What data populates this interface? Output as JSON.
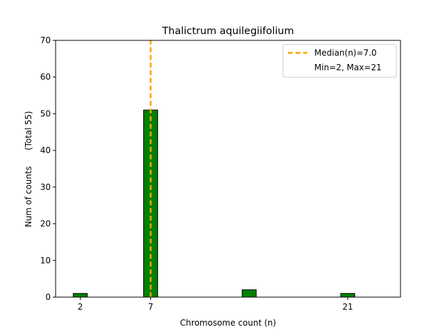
{
  "chart_data": {
    "type": "bar",
    "title": "Thalictrum aquilegiifolium",
    "xlabel": "Chromosome count (n)",
    "ylabel": "Num of counts      (Total 55)",
    "xlim": [
      0.25,
      24.75
    ],
    "ylim": [
      0,
      70
    ],
    "xticks": [
      2,
      7,
      21
    ],
    "yticks": [
      0,
      10,
      20,
      30,
      40,
      50,
      60,
      70
    ],
    "bar_width": 1,
    "bars": [
      {
        "x": 2,
        "value": 1
      },
      {
        "x": 7,
        "value": 51
      },
      {
        "x": 14,
        "value": 2
      },
      {
        "x": 21,
        "value": 1
      }
    ],
    "median": 7.0,
    "grid": false,
    "legend_position": "top-right",
    "legend": [
      {
        "label": "Median(n)=7.0",
        "style": "dashed-line"
      },
      {
        "label": "Min=2, Max=21",
        "style": "none"
      }
    ],
    "colors": {
      "bar_fill": "#008000",
      "bar_edge": "#000000",
      "median_line": "#ffa500"
    }
  }
}
